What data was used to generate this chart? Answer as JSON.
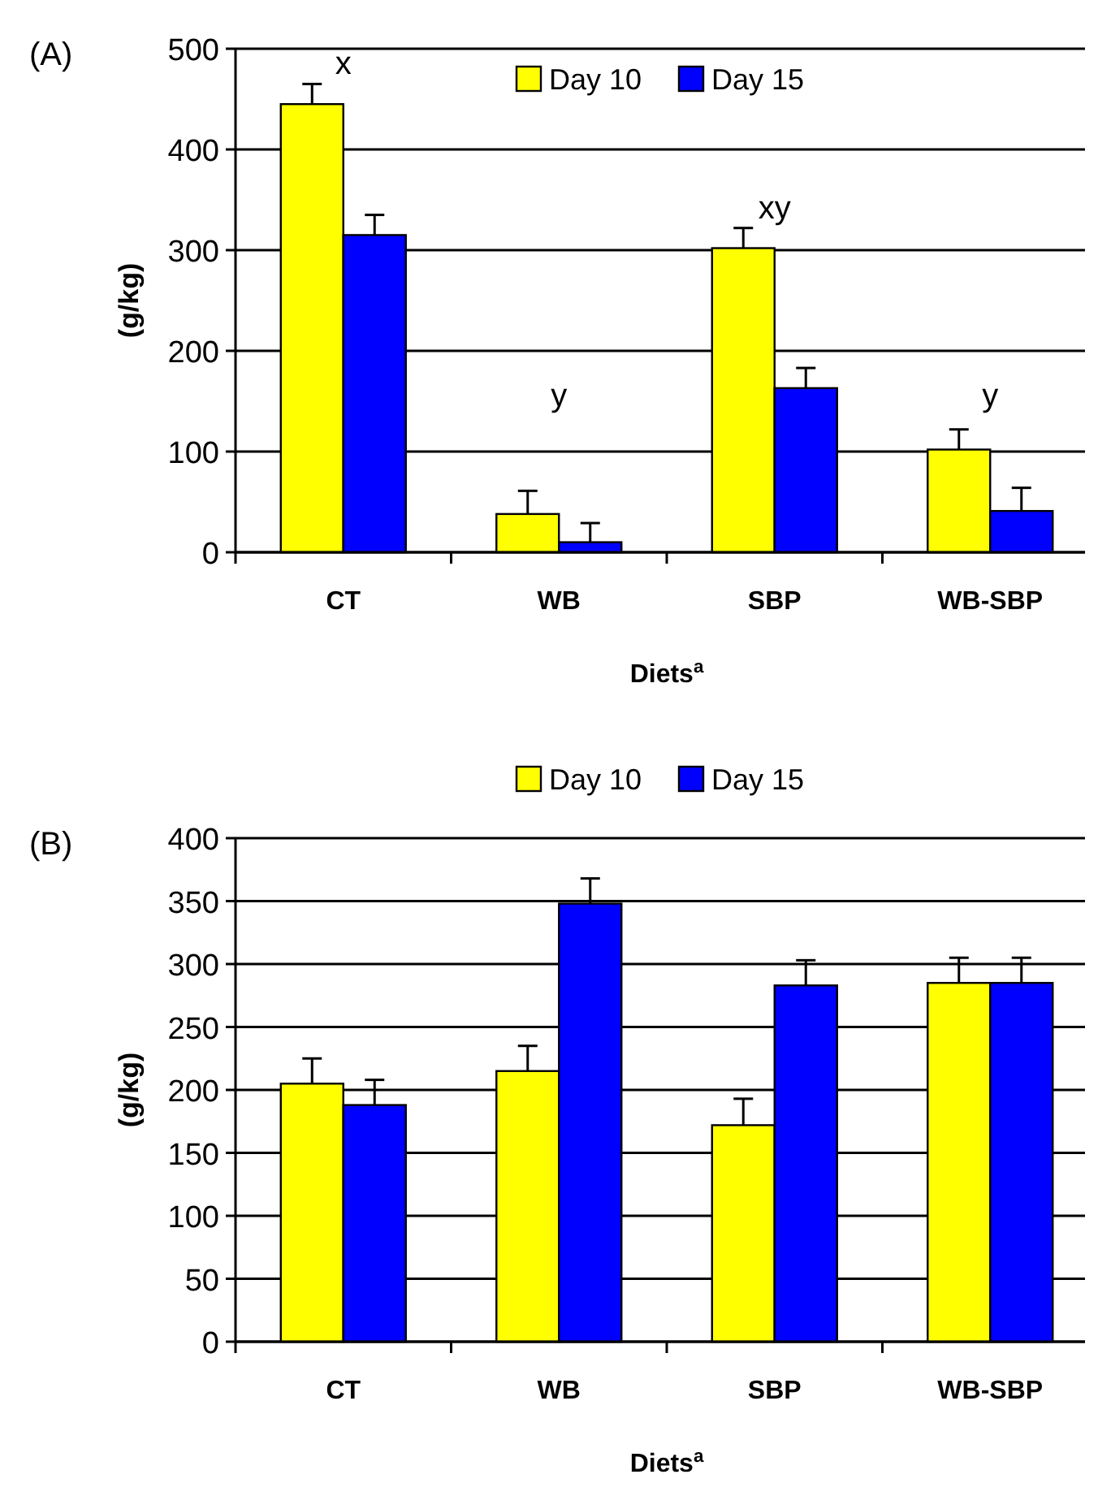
{
  "chart_data": [
    {
      "type": "bar",
      "title": "(A)",
      "xlabel": "Diets$^{a}$",
      "ylabel": "(g/kg)",
      "categories": [
        "CT",
        "WB",
        "SBP",
        "WB-SBP"
      ],
      "series": [
        {
          "name": "Day 10",
          "color": "#ffff00",
          "values": [
            445,
            38,
            302,
            102
          ],
          "errors": [
            [
              445,
              465
            ],
            [
              38,
              61
            ],
            [
              302,
              322
            ],
            [
              102,
              122
            ]
          ]
        },
        {
          "name": "Day 15",
          "color": "#0000ff",
          "values": [
            315,
            10,
            163,
            41
          ],
          "errors": [
            [
              315,
              335
            ],
            [
              10,
              29
            ],
            [
              163,
              183
            ],
            [
              41,
              64
            ]
          ]
        }
      ],
      "ylim": [
        0,
        500
      ],
      "yticks": [
        0,
        100,
        200,
        300,
        400,
        500
      ],
      "grid": "y",
      "legend": "top",
      "annotations": [
        "x",
        "y",
        "xy",
        "y"
      ]
    },
    {
      "type": "bar",
      "title": "(B)",
      "xlabel": "Diets$^{a}$",
      "ylabel": "(g/kg)",
      "categories": [
        "CT",
        "WB",
        "SBP",
        "WB-SBP"
      ],
      "series": [
        {
          "name": "Day 10",
          "color": "#ffff00",
          "values": [
            205,
            215,
            172,
            285
          ],
          "errors": [
            [
              205,
              225
            ],
            [
              215,
              235
            ],
            [
              172,
              193
            ],
            [
              285,
              305
            ]
          ]
        },
        {
          "name": "Day 15",
          "color": "#0000ff",
          "values": [
            188,
            348,
            283,
            285
          ],
          "errors": [
            [
              188,
              208
            ],
            [
              348,
              368
            ],
            [
              283,
              303
            ],
            [
              285,
              305
            ]
          ]
        }
      ],
      "ylim": [
        0,
        400
      ],
      "yticks": [
        0,
        50,
        100,
        150,
        200,
        250,
        300,
        350,
        400
      ],
      "grid": "y",
      "legend": "top"
    }
  ]
}
